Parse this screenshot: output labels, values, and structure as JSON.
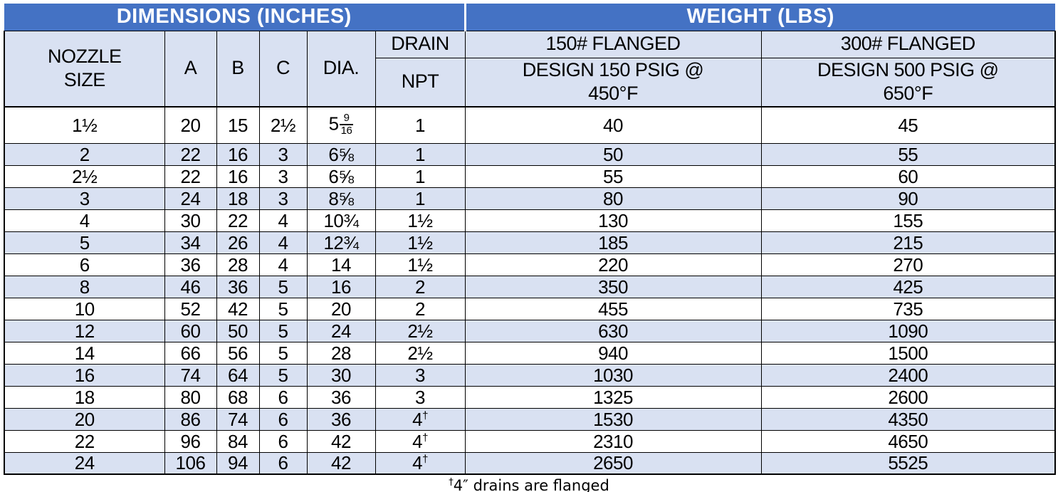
{
  "colors": {
    "header_blue": "#4472C4",
    "row_alt": "#D9E1F2"
  },
  "header": {
    "dimensions_title": "DIMENSIONS (INCHES)",
    "weight_title": "WEIGHT (LBS)",
    "nozzle_size": "NOZZLE\nSIZE",
    "col_a": "A",
    "col_b": "B",
    "col_c": "C",
    "col_dia": "DIA.",
    "drain": "DRAIN",
    "npt": "NPT",
    "flanged_150": "150# FLANGED",
    "flanged_300": "300# FLANGED",
    "design_150": "DESIGN 150 PSIG @\n450°F",
    "design_300": "DESIGN 500 PSIG @\n650°F"
  },
  "rows": [
    {
      "size": "1½",
      "a": "20",
      "b": "15",
      "c": "2½",
      "dia": {
        "whole": "5",
        "num": "9",
        "den": "16"
      },
      "npt": "1",
      "w150": "40",
      "w300": "45"
    },
    {
      "size": "2",
      "a": "22",
      "b": "16",
      "c": "3",
      "dia": "6⅝",
      "npt": "1",
      "w150": "50",
      "w300": "55"
    },
    {
      "size": "2½",
      "a": "22",
      "b": "16",
      "c": "3",
      "dia": "6⅝",
      "npt": "1",
      "w150": "55",
      "w300": "60"
    },
    {
      "size": "3",
      "a": "24",
      "b": "18",
      "c": "3",
      "dia": "8⅝",
      "npt": "1",
      "w150": "80",
      "w300": "90"
    },
    {
      "size": "4",
      "a": "30",
      "b": "22",
      "c": "4",
      "dia": "10¾",
      "npt": "1½",
      "w150": "130",
      "w300": "155"
    },
    {
      "size": "5",
      "a": "34",
      "b": "26",
      "c": "4",
      "dia": "12¾",
      "npt": "1½",
      "w150": "185",
      "w300": "215"
    },
    {
      "size": "6",
      "a": "36",
      "b": "28",
      "c": "4",
      "dia": "14",
      "npt": "1½",
      "w150": "220",
      "w300": "270"
    },
    {
      "size": "8",
      "a": "46",
      "b": "36",
      "c": "5",
      "dia": "16",
      "npt": "2",
      "w150": "350",
      "w300": "425"
    },
    {
      "size": "10",
      "a": "52",
      "b": "42",
      "c": "5",
      "dia": "20",
      "npt": "2",
      "w150": "455",
      "w300": "735"
    },
    {
      "size": "12",
      "a": "60",
      "b": "50",
      "c": "5",
      "dia": "24",
      "npt": "2½",
      "w150": "630",
      "w300": "1090"
    },
    {
      "size": "14",
      "a": "66",
      "b": "56",
      "c": "5",
      "dia": "28",
      "npt": "2½",
      "w150": "940",
      "w300": "1500"
    },
    {
      "size": "16",
      "a": "74",
      "b": "64",
      "c": "5",
      "dia": "30",
      "npt": "3",
      "w150": "1030",
      "w300": "2400"
    },
    {
      "size": "18",
      "a": "80",
      "b": "68",
      "c": "6",
      "dia": "36",
      "npt": "3",
      "w150": "1325",
      "w300": "2600"
    },
    {
      "size": "20",
      "a": "86",
      "b": "74",
      "c": "6",
      "dia": "36",
      "npt": "4†",
      "w150": "1530",
      "w300": "4350"
    },
    {
      "size": "22",
      "a": "96",
      "b": "84",
      "c": "6",
      "dia": "42",
      "npt": "4†",
      "w150": "2310",
      "w300": "4650"
    },
    {
      "size": "24",
      "a": "106",
      "b": "94",
      "c": "6",
      "dia": "42",
      "npt": "4†",
      "w150": "2650",
      "w300": "5525"
    }
  ],
  "footnote": {
    "dagger": "†",
    "text": "4″ drains are flanged"
  }
}
